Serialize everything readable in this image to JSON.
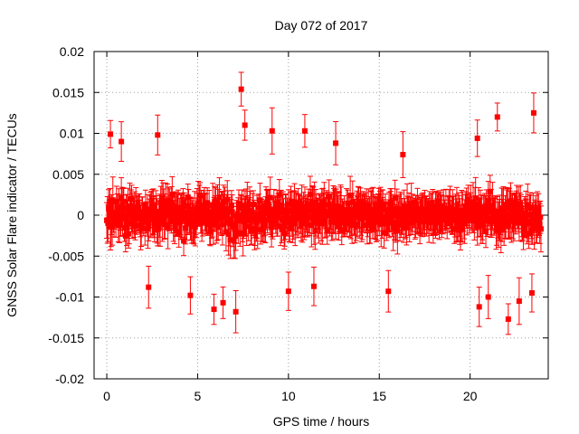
{
  "chart_data": {
    "type": "scatter",
    "title": "Day 072 of 2017",
    "xlabel": "GPS time / hours",
    "ylabel": "GNSS Solar Flare indicator / TECUs",
    "xlim": [
      -0.7,
      24.3
    ],
    "ylim": [
      -0.02,
      0.02
    ],
    "xticks": [
      0,
      5,
      10,
      15,
      20
    ],
    "xtick_labels": [
      "0",
      "5",
      "10",
      "15",
      "20"
    ],
    "yticks": [
      -0.02,
      -0.015,
      -0.01,
      -0.005,
      0,
      0.005,
      0.01,
      0.015,
      0.02
    ],
    "ytick_labels": [
      "-0.02",
      "-0.015",
      "-0.01",
      "-0.005",
      "0",
      "0.005",
      "0.01",
      "0.015",
      "0.02"
    ],
    "grid": true,
    "legend": "none",
    "series": [
      {
        "color": "#ff0000",
        "marker": "square",
        "error_bars": true,
        "x_step_hours": 0.033333,
        "x": [
          0.0,
          0.5,
          1.0,
          1.5,
          2.0,
          2.5,
          3.0,
          3.5,
          4.0,
          4.5,
          5.0,
          5.5,
          6.0,
          6.5,
          7.0,
          7.5,
          8.0,
          8.5,
          9.0,
          9.5,
          10.0,
          10.5,
          11.0,
          11.5,
          12.0,
          12.5,
          13.0,
          13.5,
          14.0,
          14.5,
          15.0,
          15.5,
          16.0,
          16.5,
          17.0,
          17.5,
          18.0,
          18.5,
          19.0,
          19.5,
          20.0,
          20.5,
          21.0,
          21.5,
          22.0,
          22.5,
          23.0,
          23.5,
          23.9
        ],
        "spread": [
          0.0056,
          0.0058,
          0.0058,
          0.0055,
          0.0055,
          0.0055,
          0.0055,
          0.0055,
          0.0055,
          0.0056,
          0.0058,
          0.006,
          0.0062,
          0.0064,
          0.0066,
          0.0068,
          0.006,
          0.0057,
          0.0055,
          0.0055,
          0.0055,
          0.0055,
          0.0052,
          0.005,
          0.005,
          0.0048,
          0.0045,
          0.0045,
          0.0045,
          0.0046,
          0.0047,
          0.0046,
          0.0044,
          0.0038,
          0.0034,
          0.0032,
          0.0032,
          0.0034,
          0.0038,
          0.0045,
          0.0055,
          0.0062,
          0.0068,
          0.007,
          0.007,
          0.0068,
          0.0064,
          0.006,
          0.0058
        ],
        "error": 0.0022,
        "outliers": [
          {
            "x": 0.2,
            "y": 0.0099
          },
          {
            "x": 0.8,
            "y": 0.009
          },
          {
            "x": 2.3,
            "y": -0.0088
          },
          {
            "x": 2.8,
            "y": 0.0098
          },
          {
            "x": 4.6,
            "y": -0.0098
          },
          {
            "x": 5.9,
            "y": -0.0115
          },
          {
            "x": 6.4,
            "y": -0.0107
          },
          {
            "x": 7.1,
            "y": -0.0118
          },
          {
            "x": 7.4,
            "y": 0.0154
          },
          {
            "x": 7.6,
            "y": 0.011
          },
          {
            "x": 9.1,
            "y": 0.0103
          },
          {
            "x": 10.0,
            "y": -0.0093
          },
          {
            "x": 10.9,
            "y": 0.0103
          },
          {
            "x": 11.4,
            "y": -0.0087
          },
          {
            "x": 12.6,
            "y": 0.0088
          },
          {
            "x": 15.5,
            "y": -0.0093
          },
          {
            "x": 16.3,
            "y": 0.0074
          },
          {
            "x": 20.4,
            "y": 0.0094
          },
          {
            "x": 20.5,
            "y": -0.0112
          },
          {
            "x": 21.0,
            "y": -0.01
          },
          {
            "x": 21.5,
            "y": 0.012
          },
          {
            "x": 22.1,
            "y": -0.0127
          },
          {
            "x": 22.7,
            "y": -0.0105
          },
          {
            "x": 23.5,
            "y": 0.0125
          },
          {
            "x": 23.4,
            "y": -0.0095
          }
        ]
      }
    ]
  }
}
